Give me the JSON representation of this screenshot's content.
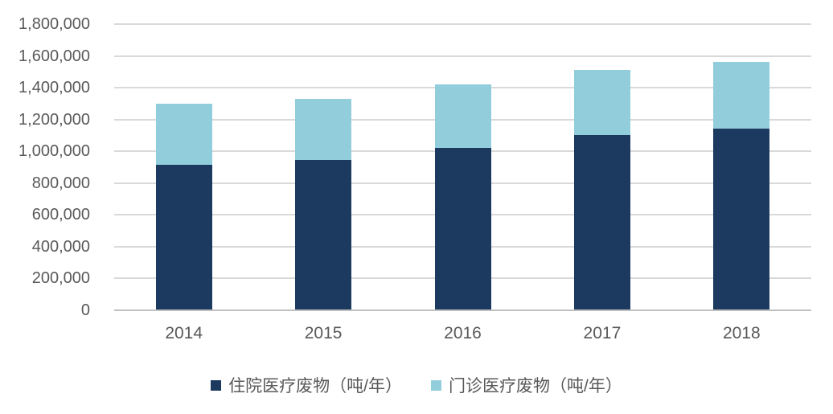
{
  "chart_data": {
    "type": "bar",
    "stacked": true,
    "title": "",
    "xlabel": "",
    "ylabel": "",
    "categories": [
      "2014",
      "2015",
      "2016",
      "2017",
      "2018"
    ],
    "series": [
      {
        "name": "住院医疗废物（吨/年）",
        "color": "#1c3a60",
        "values": [
          915000,
          945000,
          1020000,
          1100000,
          1145000
        ]
      },
      {
        "name": "门诊医疗废物（吨/年）",
        "color": "#92cddc",
        "values": [
          385000,
          385000,
          400000,
          410000,
          415000
        ]
      }
    ],
    "stacked_totals": [
      1300000,
      1330000,
      1420000,
      1510000,
      1560000
    ],
    "ylim": [
      0,
      1800000
    ],
    "ytick_step": 200000,
    "yticks": [
      {
        "value": 0,
        "label": "0"
      },
      {
        "value": 200000,
        "label": "200,000"
      },
      {
        "value": 400000,
        "label": "400,000"
      },
      {
        "value": 600000,
        "label": "600,000"
      },
      {
        "value": 800000,
        "label": "800,000"
      },
      {
        "value": 1000000,
        "label": "1,000,000"
      },
      {
        "value": 1200000,
        "label": "1,200,000"
      },
      {
        "value": 1400000,
        "label": "1,400,000"
      },
      {
        "value": 1600000,
        "label": "1,600,000"
      },
      {
        "value": 1800000,
        "label": "1,800,000"
      }
    ],
    "grid": "horizontal",
    "legend_position": "bottom"
  },
  "colors": {
    "background": "#ffffff",
    "gridline": "#d9d9d9",
    "axis_line": "#c0c0c0",
    "tick_text": "#595959",
    "legend_text": "#595959"
  },
  "series_keys": [
    "inpatient",
    "outpatient"
  ]
}
